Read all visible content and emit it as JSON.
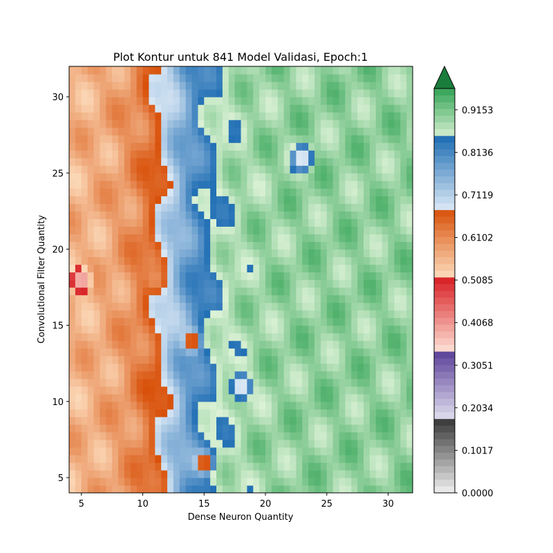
{
  "chart_data": {
    "type": "contour",
    "title": "Plot Kontur untuk 841 Model Validasi, Epoch:1",
    "xlabel": "Dense Neuron Quantity",
    "ylabel": "Convolutional Filter Quantity",
    "xlim": [
      4,
      32
    ],
    "ylim": [
      4,
      32
    ],
    "x_ticks": [
      5,
      10,
      15,
      20,
      25,
      30
    ],
    "y_ticks": [
      5,
      10,
      15,
      20,
      25,
      30
    ],
    "grid": false,
    "colorbar": {
      "min": 0.0,
      "max": 0.9662,
      "extend": "max",
      "tick_values": [
        0.0,
        0.1017,
        0.2034,
        0.3051,
        0.4068,
        0.5085,
        0.6102,
        0.7119,
        0.8136,
        0.9153
      ],
      "tick_labels": [
        "0.0000",
        "0.1017",
        "0.2034",
        "0.3051",
        "0.4068",
        "0.5085",
        "0.6102",
        "0.7119",
        "0.8136",
        "0.9153"
      ],
      "colormap_segments": [
        {
          "name": "Greys",
          "range": [
            0.0,
            0.1694
          ],
          "light": "#f0f0f0",
          "dark": "#3f3f3f"
        },
        {
          "name": "Purples",
          "range": [
            0.1694,
            0.3389
          ],
          "light": "#e6e6f2",
          "dark": "#5a3f98"
        },
        {
          "name": "Reds",
          "range": [
            0.3389,
            0.5085
          ],
          "light": "#fde0d4",
          "dark": "#d9252a"
        },
        {
          "name": "Oranges",
          "range": [
            0.5085,
            0.678
          ],
          "light": "#fee2c4",
          "dark": "#d85009"
        },
        {
          "name": "Blues",
          "range": [
            0.678,
            0.8475
          ],
          "light": "#dbe8f5",
          "dark": "#2270b5"
        },
        {
          "name": "Greens",
          "range": [
            0.8475,
            0.9662
          ],
          "light": "#dcf2d6",
          "dark": "#31a354"
        }
      ],
      "extend_color": "#1b7d3c"
    },
    "grid_data": {
      "x": [
        4,
        5,
        6,
        7,
        8,
        9,
        10,
        11,
        12,
        13,
        14,
        15,
        16,
        17,
        18,
        19,
        20,
        21,
        22,
        23,
        24,
        25,
        26,
        27,
        28,
        29,
        30,
        31,
        32
      ],
      "y": [
        4,
        5,
        6,
        7,
        8,
        9,
        10,
        11,
        12,
        13,
        14,
        15,
        16,
        17,
        18,
        19,
        20,
        21,
        22,
        23,
        24,
        25,
        26,
        27,
        28,
        29,
        30,
        31,
        32
      ],
      "z_description": "validation accuracy per (dense neurons, conv filters) model; approx. 0.50–0.70 for x<9, 0.70–0.82 for x 9–14, 0.84–0.94 for x>16"
    },
    "annotations": [
      {
        "x": 5,
        "y": 18,
        "value": 0.33
      },
      {
        "x": 14,
        "y": 14,
        "value": 0.63
      },
      {
        "x": 18,
        "y": 11,
        "value": 0.61
      },
      {
        "x": 23,
        "y": 26,
        "value": 0.62
      },
      {
        "x": 15,
        "y": 6,
        "value": 0.62
      },
      {
        "x": 11,
        "y": 18,
        "value": 0.6
      }
    ]
  }
}
